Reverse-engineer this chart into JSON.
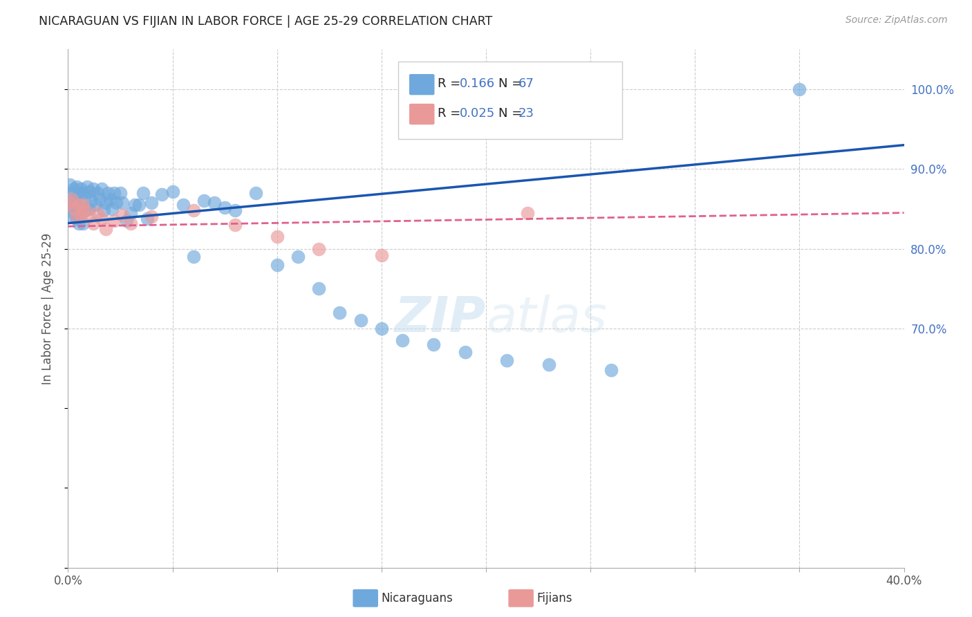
{
  "title": "NICARAGUAN VS FIJIAN IN LABOR FORCE | AGE 25-29 CORRELATION CHART",
  "source": "Source: ZipAtlas.com",
  "ylabel": "In Labor Force | Age 25-29",
  "xlim": [
    0.0,
    0.4
  ],
  "ylim": [
    0.4,
    1.05
  ],
  "blue_color": "#6fa8dc",
  "pink_color": "#ea9999",
  "line_blue_color": "#1a56b0",
  "line_pink_color": "#e06090",
  "blue_R": "0.166",
  "blue_N": "67",
  "pink_R": "0.025",
  "pink_N": "23",
  "blue_line_x": [
    0.0,
    0.4
  ],
  "blue_line_y": [
    0.832,
    0.93
  ],
  "pink_line_x": [
    0.0,
    0.4
  ],
  "pink_line_y": [
    0.828,
    0.845
  ],
  "blue_x": [
    0.001,
    0.001,
    0.002,
    0.002,
    0.002,
    0.003,
    0.003,
    0.003,
    0.004,
    0.004,
    0.004,
    0.005,
    0.005,
    0.005,
    0.006,
    0.006,
    0.007,
    0.007,
    0.008,
    0.008,
    0.009,
    0.01,
    0.01,
    0.011,
    0.012,
    0.013,
    0.014,
    0.015,
    0.016,
    0.017,
    0.018,
    0.019,
    0.02,
    0.021,
    0.022,
    0.023,
    0.025,
    0.026,
    0.028,
    0.03,
    0.032,
    0.034,
    0.036,
    0.038,
    0.04,
    0.045,
    0.05,
    0.055,
    0.06,
    0.065,
    0.07,
    0.075,
    0.08,
    0.09,
    0.1,
    0.11,
    0.12,
    0.13,
    0.14,
    0.15,
    0.16,
    0.175,
    0.19,
    0.21,
    0.23,
    0.26,
    0.35
  ],
  "blue_y": [
    0.88,
    0.858,
    0.87,
    0.855,
    0.84,
    0.875,
    0.862,
    0.845,
    0.878,
    0.855,
    0.838,
    0.868,
    0.852,
    0.832,
    0.875,
    0.85,
    0.87,
    0.832,
    0.865,
    0.848,
    0.878,
    0.872,
    0.85,
    0.86,
    0.875,
    0.855,
    0.87,
    0.862,
    0.875,
    0.848,
    0.858,
    0.87,
    0.862,
    0.85,
    0.87,
    0.858,
    0.87,
    0.858,
    0.835,
    0.845,
    0.855,
    0.855,
    0.87,
    0.838,
    0.858,
    0.868,
    0.872,
    0.855,
    0.79,
    0.86,
    0.858,
    0.852,
    0.848,
    0.87,
    0.78,
    0.79,
    0.75,
    0.72,
    0.71,
    0.7,
    0.685,
    0.68,
    0.67,
    0.66,
    0.655,
    0.648,
    1.0
  ],
  "pink_x": [
    0.001,
    0.002,
    0.003,
    0.004,
    0.005,
    0.006,
    0.007,
    0.008,
    0.01,
    0.012,
    0.014,
    0.016,
    0.018,
    0.022,
    0.026,
    0.03,
    0.04,
    0.06,
    0.08,
    0.1,
    0.12,
    0.15,
    0.22
  ],
  "pink_y": [
    0.858,
    0.862,
    0.85,
    0.84,
    0.855,
    0.842,
    0.855,
    0.848,
    0.84,
    0.832,
    0.845,
    0.838,
    0.825,
    0.835,
    0.842,
    0.832,
    0.84,
    0.848,
    0.83,
    0.815,
    0.8,
    0.792,
    0.845
  ]
}
